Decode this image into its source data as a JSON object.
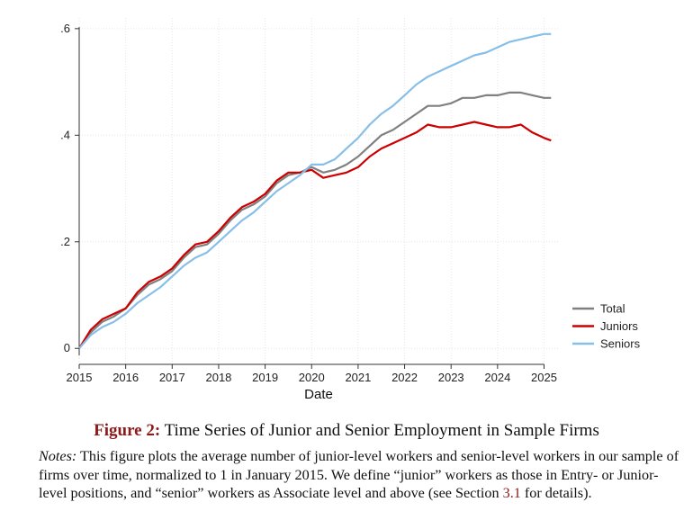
{
  "chart_data": {
    "type": "line",
    "xlabel": "Date",
    "ylabel": "",
    "xlim": [
      2015,
      2025.3
    ],
    "ylim": [
      -0.03,
      0.62
    ],
    "x_ticks": [
      2015,
      2016,
      2017,
      2018,
      2019,
      2020,
      2021,
      2022,
      2023,
      2024,
      2025
    ],
    "y_ticks": [
      0,
      0.2,
      0.4,
      0.6
    ],
    "y_tick_labels": [
      "0",
      ".2",
      ".4",
      ".6"
    ],
    "grid": true,
    "legend_position": "right",
    "x": [
      2015.0,
      2015.25,
      2015.5,
      2015.75,
      2016.0,
      2016.25,
      2016.5,
      2016.75,
      2017.0,
      2017.25,
      2017.5,
      2017.75,
      2018.0,
      2018.25,
      2018.5,
      2018.75,
      2019.0,
      2019.25,
      2019.5,
      2019.75,
      2020.0,
      2020.25,
      2020.5,
      2020.75,
      2021.0,
      2021.25,
      2021.5,
      2021.75,
      2022.0,
      2022.25,
      2022.5,
      2022.75,
      2023.0,
      2023.25,
      2023.5,
      2023.75,
      2024.0,
      2024.25,
      2024.5,
      2024.75,
      2025.0,
      2025.15
    ],
    "series": [
      {
        "name": "Total",
        "color": "#808080",
        "values": [
          0.0,
          0.03,
          0.05,
          0.06,
          0.075,
          0.1,
          0.12,
          0.13,
          0.145,
          0.17,
          0.19,
          0.195,
          0.215,
          0.24,
          0.26,
          0.27,
          0.285,
          0.31,
          0.325,
          0.33,
          0.34,
          0.33,
          0.335,
          0.345,
          0.36,
          0.38,
          0.4,
          0.41,
          0.425,
          0.44,
          0.455,
          0.455,
          0.46,
          0.47,
          0.47,
          0.475,
          0.475,
          0.48,
          0.48,
          0.475,
          0.47,
          0.47
        ]
      },
      {
        "name": "Juniors",
        "color": "#cc0000",
        "values": [
          0.0,
          0.035,
          0.055,
          0.065,
          0.075,
          0.105,
          0.125,
          0.135,
          0.15,
          0.175,
          0.195,
          0.2,
          0.22,
          0.245,
          0.265,
          0.275,
          0.29,
          0.315,
          0.33,
          0.33,
          0.335,
          0.32,
          0.325,
          0.33,
          0.34,
          0.36,
          0.375,
          0.385,
          0.395,
          0.405,
          0.42,
          0.415,
          0.415,
          0.42,
          0.425,
          0.42,
          0.415,
          0.415,
          0.42,
          0.405,
          0.395,
          0.39
        ]
      },
      {
        "name": "Seniors",
        "color": "#87bfe8",
        "values": [
          0.0,
          0.025,
          0.04,
          0.05,
          0.065,
          0.085,
          0.1,
          0.115,
          0.135,
          0.155,
          0.17,
          0.18,
          0.2,
          0.22,
          0.24,
          0.255,
          0.275,
          0.295,
          0.31,
          0.325,
          0.345,
          0.345,
          0.355,
          0.375,
          0.395,
          0.42,
          0.44,
          0.455,
          0.475,
          0.495,
          0.51,
          0.52,
          0.53,
          0.54,
          0.55,
          0.555,
          0.565,
          0.575,
          0.58,
          0.585,
          0.59,
          0.59
        ]
      }
    ]
  },
  "caption": {
    "figure_label": "Figure 2:",
    "title": "Time Series of Junior and Senior Employment in Sample Firms"
  },
  "notes": {
    "label": "Notes:",
    "text_before_ref": "This figure plots the average number of junior-level workers and senior-level workers in our sample of firms over time, normalized to 1 in January 2015. We define “junior” workers as those in Entry- or Junior-level positions, and “senior” workers as Associate level and above (see Section",
    "ref": "3.1",
    "text_after_ref": "for details)."
  }
}
